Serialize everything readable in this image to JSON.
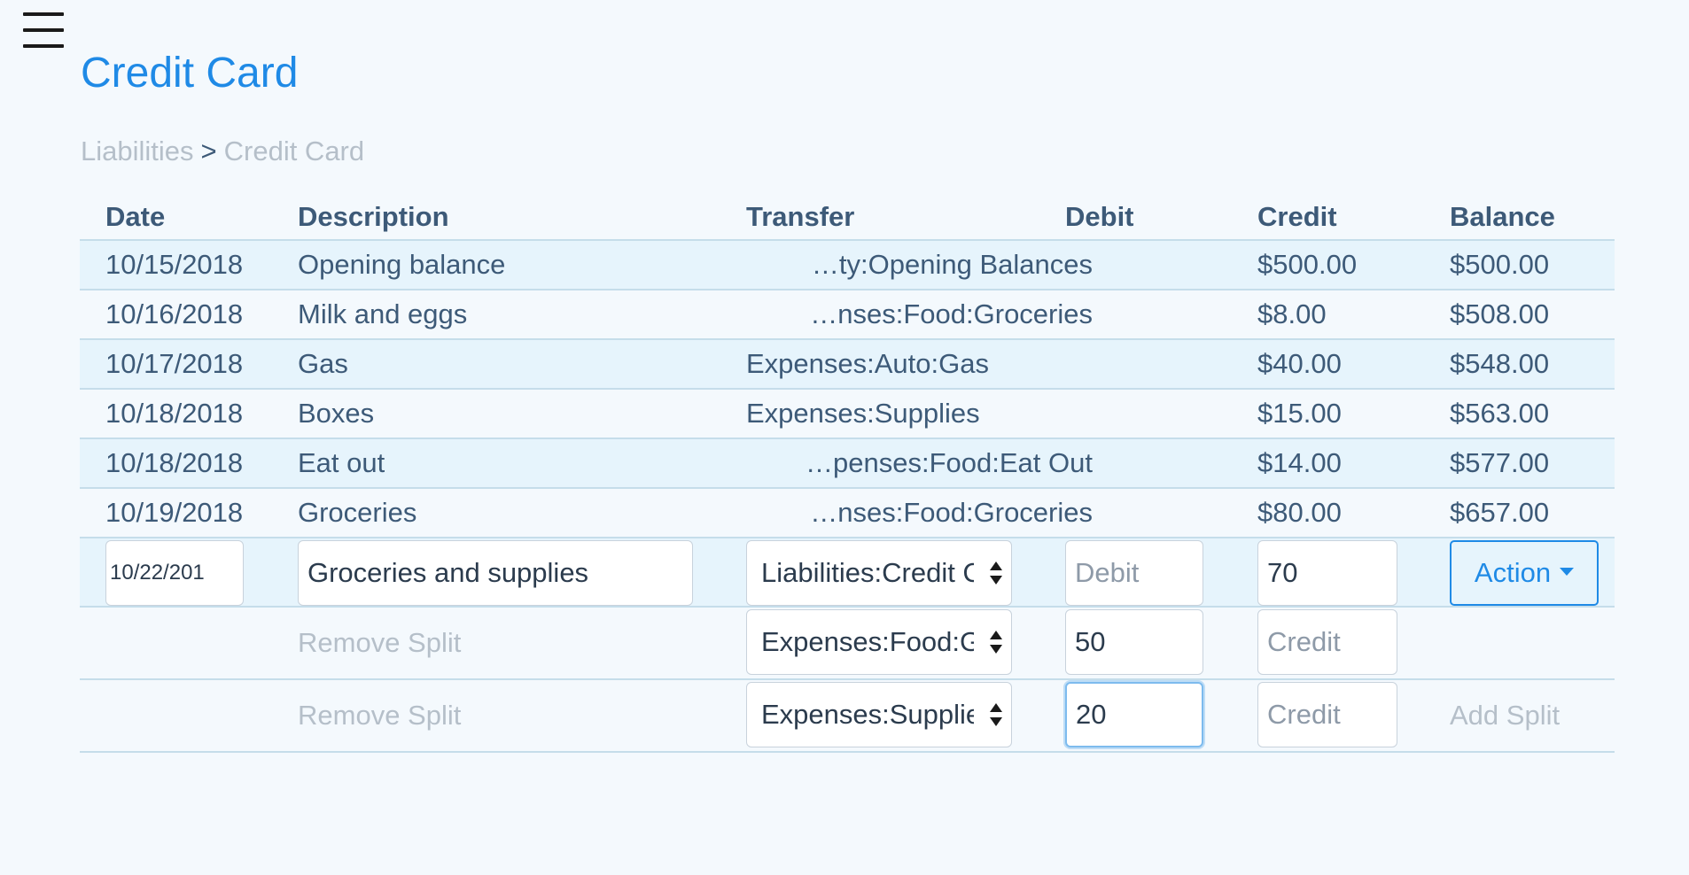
{
  "header": {
    "title": "Credit Card",
    "breadcrumb": {
      "parent": "Liabilities",
      "separator": ">",
      "current": "Credit Card"
    }
  },
  "colors": {
    "accent": "#1f8ae6",
    "text": "#3d5a78",
    "muted": "#b5bfc9",
    "row_alt": "#e6f4fc",
    "background": "#f4f9fd"
  },
  "table": {
    "columns": [
      "Date",
      "Description",
      "Transfer",
      "Debit",
      "Credit",
      "Balance"
    ],
    "rows": [
      {
        "date": "10/15/2018",
        "description": "Opening balance",
        "transfer": "…ty:Opening Balances",
        "debit": "",
        "credit": "$500.00",
        "balance": "$500.00"
      },
      {
        "date": "10/16/2018",
        "description": "Milk and eggs",
        "transfer": "…nses:Food:Groceries",
        "debit": "",
        "credit": "$8.00",
        "balance": "$508.00"
      },
      {
        "date": "10/17/2018",
        "description": "Gas",
        "transfer": "Expenses:Auto:Gas",
        "debit": "",
        "credit": "$40.00",
        "balance": "$548.00"
      },
      {
        "date": "10/18/2018",
        "description": "Boxes",
        "transfer": "Expenses:Supplies",
        "debit": "",
        "credit": "$15.00",
        "balance": "$563.00"
      },
      {
        "date": "10/18/2018",
        "description": "Eat out",
        "transfer": "…penses:Food:Eat Out",
        "debit": "",
        "credit": "$14.00",
        "balance": "$577.00"
      },
      {
        "date": "10/19/2018",
        "description": "Groceries",
        "transfer": "…nses:Food:Groceries",
        "debit": "",
        "credit": "$80.00",
        "balance": "$657.00"
      }
    ]
  },
  "edit": {
    "date_value": "10/22/201",
    "description_value": "Groceries and supplies",
    "transfer_selected": "Liabilities:Credit C",
    "debit_value": "",
    "debit_placeholder": "Debit",
    "credit_value": "70",
    "credit_placeholder": "Credit",
    "action_label": "Action",
    "splits": [
      {
        "remove_label": "Remove Split",
        "transfer_selected": "Expenses:Food:Gr",
        "debit_value": "50",
        "debit_placeholder": "Debit",
        "credit_value": "",
        "credit_placeholder": "Credit"
      },
      {
        "remove_label": "Remove Split",
        "transfer_selected": "Expenses:Supplie",
        "debit_value": "20",
        "debit_placeholder": "Debit",
        "credit_value": "",
        "credit_placeholder": "Credit"
      }
    ],
    "add_split_label": "Add Split"
  }
}
